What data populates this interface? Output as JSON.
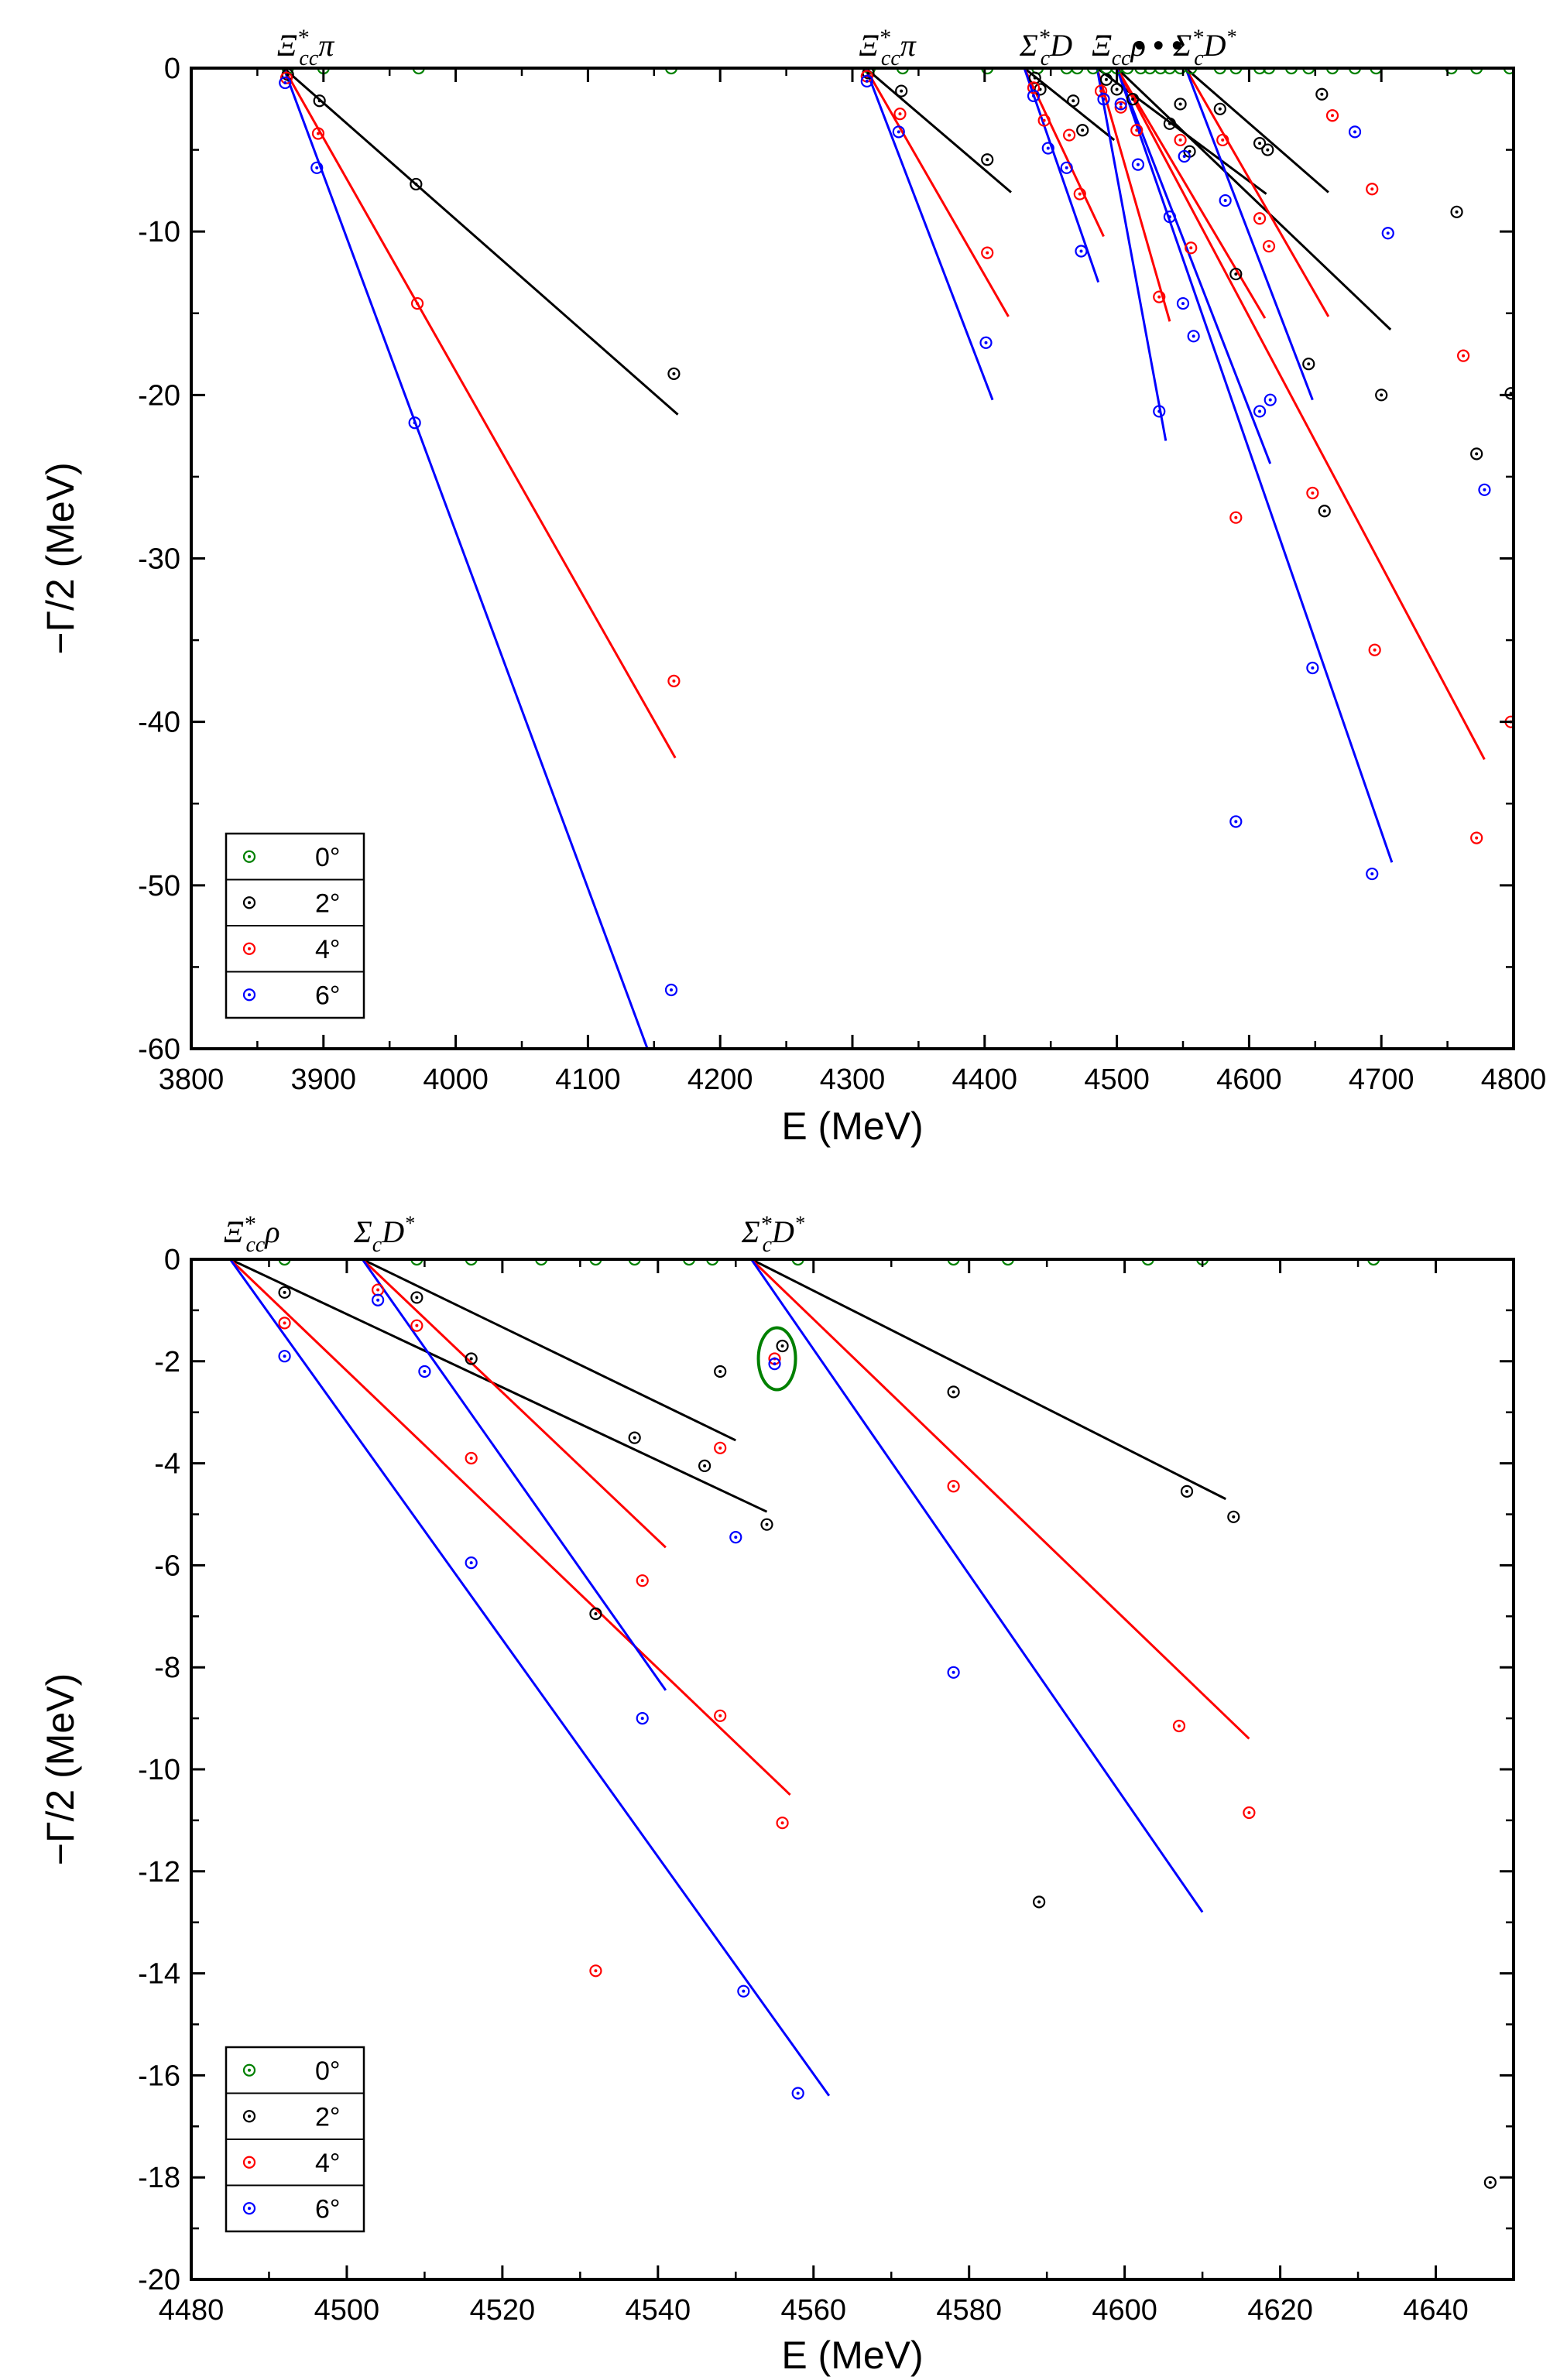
{
  "chart_data": [
    {
      "type": "scatter",
      "title": "",
      "xlabel": "E (MeV)",
      "ylabel": "−Γ/2 (MeV)",
      "xlim": [
        3800,
        4800
      ],
      "ylim": [
        -60,
        0
      ],
      "xticks": [
        3800,
        3900,
        4000,
        4100,
        4200,
        4300,
        4400,
        4500,
        4600,
        4700,
        4800
      ],
      "yticks": [
        0,
        -10,
        -20,
        -30,
        -40,
        -50,
        -60
      ],
      "threshold_labels": [
        {
          "text": "Ξ*ccπ",
          "x": 3870
        },
        {
          "text": "Ξ*ccπ",
          "x": 4310
        },
        {
          "text": "Σ*cD",
          "x": 4430
        },
        {
          "text": "Ξccρ",
          "x": 4485
        },
        {
          "text": "• • •",
          "x": 4515
        },
        {
          "text": "Σ*cD*",
          "x": 4550
        }
      ],
      "lines": [
        {
          "color": "#000000",
          "x": [
            3870,
            4168
          ],
          "y": [
            0,
            -21.2
          ]
        },
        {
          "color": "#ff0000",
          "x": [
            3870,
            4166
          ],
          "y": [
            0,
            -42.2
          ]
        },
        {
          "color": "#0000ff",
          "x": [
            3870,
            4145
          ],
          "y": [
            0,
            -60
          ]
        },
        {
          "color": "#000000",
          "x": [
            4310,
            4420
          ],
          "y": [
            0,
            -7.6
          ]
        },
        {
          "color": "#ff0000",
          "x": [
            4310,
            4418
          ],
          "y": [
            0,
            -15.2
          ]
        },
        {
          "color": "#0000ff",
          "x": [
            4310,
            4406
          ],
          "y": [
            0,
            -20.3
          ]
        },
        {
          "color": "#000000",
          "x": [
            4430,
            4498
          ],
          "y": [
            0,
            -4.4
          ]
        },
        {
          "color": "#ff0000",
          "x": [
            4430,
            4490
          ],
          "y": [
            0,
            -10.3
          ]
        },
        {
          "color": "#0000ff",
          "x": [
            4430,
            4486
          ],
          "y": [
            0,
            -13.1
          ]
        },
        {
          "color": "#000000",
          "x": [
            4485,
            4613
          ],
          "y": [
            0,
            -7.7
          ]
        },
        {
          "color": "#ff0000",
          "x": [
            4485,
            4540
          ],
          "y": [
            0,
            -15.5
          ]
        },
        {
          "color": "#0000ff",
          "x": [
            4485,
            4537
          ],
          "y": [
            0,
            -22.8
          ]
        },
        {
          "color": "#000000",
          "x": [
            4500,
            4707
          ],
          "y": [
            0,
            -16.0
          ]
        },
        {
          "color": "#ff0000",
          "x": [
            4500,
            4612
          ],
          "y": [
            0,
            -15.3
          ]
        },
        {
          "color": "#0000ff",
          "x": [
            4500,
            4616
          ],
          "y": [
            0,
            -24.2
          ]
        },
        {
          "color": "#000000",
          "x": [
            4552,
            4660
          ],
          "y": [
            0,
            -7.6
          ]
        },
        {
          "color": "#ff0000",
          "x": [
            4552,
            4660
          ],
          "y": [
            0,
            -15.2
          ]
        },
        {
          "color": "#0000ff",
          "x": [
            4552,
            4648
          ],
          "y": [
            0,
            -20.3
          ]
        },
        {
          "color": "#ff0000",
          "x": [
            4500,
            4778
          ],
          "y": [
            0,
            -42.3
          ]
        },
        {
          "color": "#0000ff",
          "x": [
            4500,
            4708
          ],
          "y": [
            0,
            -48.6
          ]
        }
      ],
      "series": [
        {
          "name": "0°",
          "color": "#008000",
          "points": [
            [
              3873,
              0
            ],
            [
              3900,
              0
            ],
            [
              3972,
              0
            ],
            [
              4163,
              0
            ],
            [
              4313,
              0
            ],
            [
              4338,
              0
            ],
            [
              4402,
              0
            ],
            [
              4440,
              0
            ],
            [
              4462,
              0
            ],
            [
              4470,
              0
            ],
            [
              4482,
              0
            ],
            [
              4492,
              0
            ],
            [
              4500,
              0
            ],
            [
              4508,
              0
            ],
            [
              4518,
              0
            ],
            [
              4525,
              0
            ],
            [
              4533,
              0
            ],
            [
              4540,
              0
            ],
            [
              4548,
              0
            ],
            [
              4556,
              0
            ],
            [
              4578,
              0
            ],
            [
              4590,
              0
            ],
            [
              4608,
              0
            ],
            [
              4615,
              0
            ],
            [
              4632,
              0
            ],
            [
              4645,
              0
            ],
            [
              4663,
              0
            ],
            [
              4680,
              0
            ],
            [
              4696,
              0
            ],
            [
              4753,
              0
            ],
            [
              4772,
              0
            ],
            [
              4797,
              0
            ]
          ]
        },
        {
          "name": "2°",
          "color": "#000000",
          "points": [
            [
              3873,
              -0.4
            ],
            [
              3897,
              -2.0
            ],
            [
              3970,
              -7.1
            ],
            [
              4165,
              -18.7
            ],
            [
              4312,
              -0.3
            ],
            [
              4337,
              -1.4
            ],
            [
              4402,
              -5.6
            ],
            [
              4438,
              -0.6
            ],
            [
              4442,
              -1.3
            ],
            [
              4467,
              -2.0
            ],
            [
              4474,
              -3.8
            ],
            [
              4492,
              -0.7
            ],
            [
              4500,
              -1.3
            ],
            [
              4512,
              -1.9
            ],
            [
              4540,
              -3.4
            ],
            [
              4548,
              -2.2
            ],
            [
              4555,
              -5.1
            ],
            [
              4578,
              -2.5
            ],
            [
              4590,
              -12.6
            ],
            [
              4608,
              -4.6
            ],
            [
              4614,
              -5.0
            ],
            [
              4645,
              -18.1
            ],
            [
              4655,
              -1.6
            ],
            [
              4657,
              -27.1
            ],
            [
              4700,
              -20.0
            ],
            [
              4757,
              -8.8
            ],
            [
              4772,
              -23.6
            ],
            [
              4798,
              -19.9
            ]
          ]
        },
        {
          "name": "4°",
          "color": "#ff0000",
          "points": [
            [
              3872,
              -0.6
            ],
            [
              3896,
              -4.0
            ],
            [
              3971,
              -14.4
            ],
            [
              4165,
              -37.5
            ],
            [
              4311,
              -0.5
            ],
            [
              4336,
              -2.8
            ],
            [
              4402,
              -11.3
            ],
            [
              4437,
              -1.2
            ],
            [
              4445,
              -3.2
            ],
            [
              4464,
              -4.1
            ],
            [
              4472,
              -7.7
            ],
            [
              4488,
              -1.4
            ],
            [
              4503,
              -2.4
            ],
            [
              4515,
              -3.8
            ],
            [
              4532,
              -14.0
            ],
            [
              4548,
              -4.4
            ],
            [
              4556,
              -11.0
            ],
            [
              4580,
              -4.4
            ],
            [
              4590,
              -27.5
            ],
            [
              4608,
              -9.2
            ],
            [
              4615,
              -10.9
            ],
            [
              4648,
              -26.0
            ],
            [
              4663,
              -2.9
            ],
            [
              4693,
              -7.4
            ],
            [
              4695,
              -35.6
            ],
            [
              4762,
              -17.6
            ],
            [
              4772,
              -47.1
            ],
            [
              4798,
              -40.0
            ]
          ]
        },
        {
          "name": "6°",
          "color": "#0000ff",
          "points": [
            [
              3871,
              -0.9
            ],
            [
              3895,
              -6.1
            ],
            [
              3969,
              -21.7
            ],
            [
              4163,
              -56.4
            ],
            [
              4311,
              -0.8
            ],
            [
              4335,
              -3.9
            ],
            [
              4401,
              -16.8
            ],
            [
              4437,
              -1.7
            ],
            [
              4448,
              -4.9
            ],
            [
              4462,
              -6.1
            ],
            [
              4473,
              -11.2
            ],
            [
              4490,
              -1.9
            ],
            [
              4503,
              -2.2
            ],
            [
              4516,
              -5.9
            ],
            [
              4532,
              -21.0
            ],
            [
              4540,
              -9.1
            ],
            [
              4550,
              -14.4
            ],
            [
              4558,
              -16.4
            ],
            [
              4551,
              -5.4
            ],
            [
              4582,
              -8.1
            ],
            [
              4590,
              -46.1
            ],
            [
              4608,
              -21.0
            ],
            [
              4616,
              -20.3
            ],
            [
              4648,
              -36.7
            ],
            [
              4680,
              -3.9
            ],
            [
              4693,
              -49.3
            ],
            [
              4705,
              -10.1
            ],
            [
              4778,
              -25.8
            ]
          ]
        }
      ],
      "legend": {
        "position": "bottom-left",
        "entries": [
          "0°",
          "2°",
          "4°",
          "6°"
        ]
      }
    },
    {
      "type": "scatter",
      "title": "",
      "xlabel": "E (MeV)",
      "ylabel": "−Γ/2 (MeV)",
      "xlim": [
        4480,
        4650
      ],
      "ylim": [
        -20,
        0
      ],
      "xticks": [
        4480,
        4500,
        4520,
        4540,
        4560,
        4580,
        4600,
        4620,
        4640
      ],
      "yticks": [
        0,
        -2,
        -4,
        -6,
        -8,
        -10,
        -12,
        -14,
        -16,
        -18,
        -20
      ],
      "threshold_labels": [
        {
          "text": "Ξ*ccρ",
          "x": 4485
        },
        {
          "text": "ΣcD*",
          "x": 4502
        },
        {
          "text": "Σ*cD*",
          "x": 4552
        }
      ],
      "lines": [
        {
          "color": "#000000",
          "x": [
            4485,
            4554
          ],
          "y": [
            0,
            -4.95
          ]
        },
        {
          "color": "#ff0000",
          "x": [
            4485,
            4557
          ],
          "y": [
            0,
            -10.5
          ]
        },
        {
          "color": "#0000ff",
          "x": [
            4485,
            4562
          ],
          "y": [
            0,
            -16.4
          ]
        },
        {
          "color": "#000000",
          "x": [
            4502,
            4550
          ],
          "y": [
            0,
            -3.55
          ]
        },
        {
          "color": "#ff0000",
          "x": [
            4502,
            4541
          ],
          "y": [
            0,
            -5.65
          ]
        },
        {
          "color": "#0000ff",
          "x": [
            4502,
            4541
          ],
          "y": [
            0,
            -8.45
          ]
        },
        {
          "color": "#000000",
          "x": [
            4552,
            4613
          ],
          "y": [
            0,
            -4.7
          ]
        },
        {
          "color": "#ff0000",
          "x": [
            4552,
            4616
          ],
          "y": [
            0,
            -9.4
          ]
        },
        {
          "color": "#0000ff",
          "x": [
            4552,
            4610
          ],
          "y": [
            0,
            -12.8
          ]
        }
      ],
      "series": [
        {
          "name": "0°",
          "color": "#008000",
          "points": [
            [
              4492,
              0
            ],
            [
              4509,
              0
            ],
            [
              4516,
              0
            ],
            [
              4525,
              0
            ],
            [
              4532,
              0
            ],
            [
              4537,
              0
            ],
            [
              4544,
              0
            ],
            [
              4547,
              0
            ],
            [
              4558,
              0
            ],
            [
              4578,
              0
            ],
            [
              4585,
              0
            ],
            [
              4603,
              0
            ],
            [
              4610,
              0
            ],
            [
              4632,
              0
            ]
          ]
        },
        {
          "name": "2°",
          "color": "#000000",
          "points": [
            [
              4492,
              -0.65
            ],
            [
              4509,
              -0.75
            ],
            [
              4516,
              -1.95
            ],
            [
              4532,
              -6.95
            ],
            [
              4537,
              -3.5
            ],
            [
              4546,
              -4.05
            ],
            [
              4548,
              -2.2
            ],
            [
              4554,
              -5.2
            ],
            [
              4556,
              -1.7
            ],
            [
              4578,
              -2.6
            ],
            [
              4589,
              -12.6
            ],
            [
              4608,
              -4.55
            ],
            [
              4614,
              -5.05
            ],
            [
              4647,
              -18.1
            ]
          ]
        },
        {
          "name": "4°",
          "color": "#ff0000",
          "points": [
            [
              4492,
              -1.25
            ],
            [
              4504,
              -0.6
            ],
            [
              4509,
              -1.3
            ],
            [
              4516,
              -3.9
            ],
            [
              4532,
              -13.95
            ],
            [
              4538,
              -6.3
            ],
            [
              4548,
              -8.95
            ],
            [
              4548,
              -3.7
            ],
            [
              4555,
              -1.95
            ],
            [
              4556,
              -11.05
            ],
            [
              4578,
              -4.45
            ],
            [
              4607,
              -9.15
            ],
            [
              4616,
              -10.85
            ]
          ]
        },
        {
          "name": "6°",
          "color": "#0000ff",
          "points": [
            [
              4492,
              -1.9
            ],
            [
              4504,
              -0.8
            ],
            [
              4510,
              -2.2
            ],
            [
              4516,
              -5.95
            ],
            [
              4538,
              -9.0
            ],
            [
              4550,
              -5.45
            ],
            [
              4551,
              -14.35
            ],
            [
              4555,
              -2.05
            ],
            [
              4558,
              -16.35
            ],
            [
              4578,
              -8.1
            ]
          ]
        }
      ],
      "legend": {
        "position": "bottom-left",
        "entries": [
          "0°",
          "2°",
          "4°",
          "6°"
        ]
      },
      "annotations": [
        {
          "type": "ellipse",
          "color": "#008000",
          "x": 4555.3,
          "y": -1.95
        }
      ]
    }
  ]
}
